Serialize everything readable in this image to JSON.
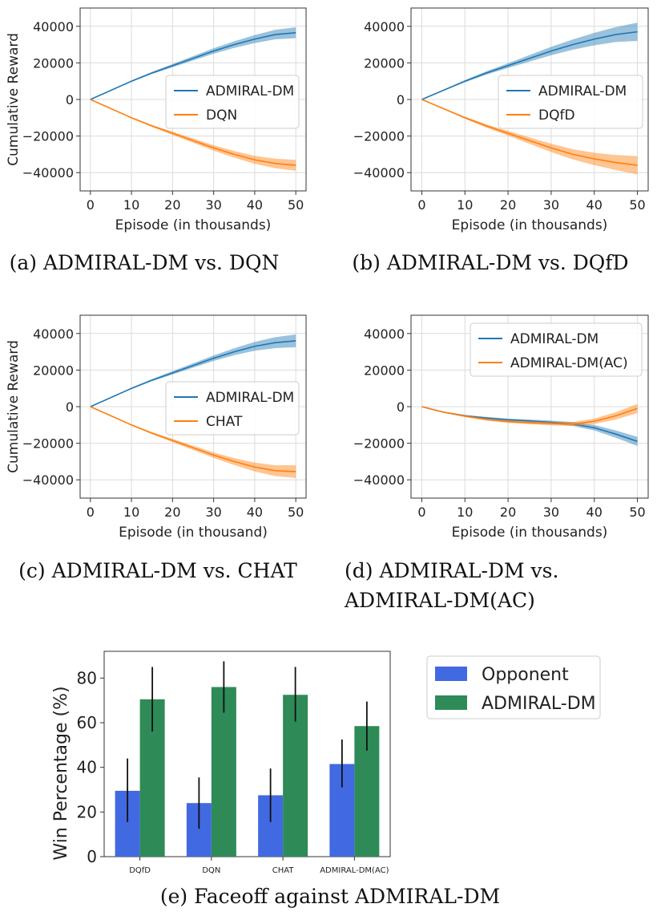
{
  "chart_data": [
    {
      "id": "a",
      "type": "line",
      "caption": "(a) ADMIRAL-DM vs. DQN",
      "xlabel": "Episode (in thousands)",
      "ylabel": "Cumulative Reward",
      "xlim": [
        -2.5,
        52.5
      ],
      "ylim": [
        -50000,
        50000
      ],
      "xticks": [
        0,
        10,
        20,
        30,
        40,
        50
      ],
      "yticks": [
        40000,
        20000,
        0,
        -20000,
        -40000
      ],
      "ytick_labels": [
        "40000",
        "20000",
        "0",
        "−20000",
        "−40000"
      ],
      "legend_position": "center-right",
      "grid": true,
      "series": [
        {
          "name": "ADMIRAL-DM",
          "color": "#1f77b4",
          "x": [
            0,
            5,
            10,
            15,
            20,
            25,
            30,
            35,
            40,
            45,
            50
          ],
          "y": [
            0,
            5000,
            10000,
            14500,
            18500,
            22500,
            26500,
            30000,
            33000,
            35500,
            36500
          ],
          "band": [
            0,
            200,
            400,
            600,
            900,
            1200,
            1500,
            1800,
            2200,
            2600,
            3000
          ]
        },
        {
          "name": "DQN",
          "color": "#ff7f0e",
          "x": [
            0,
            5,
            10,
            15,
            20,
            25,
            30,
            35,
            40,
            45,
            50
          ],
          "y": [
            0,
            -5000,
            -10000,
            -14500,
            -18500,
            -22500,
            -26500,
            -30000,
            -33000,
            -35000,
            -36000
          ],
          "band": [
            0,
            200,
            400,
            600,
            900,
            1200,
            1500,
            1800,
            2200,
            2600,
            3000
          ]
        }
      ]
    },
    {
      "id": "b",
      "type": "line",
      "caption": "(b) ADMIRAL-DM vs. DQfD",
      "xlabel": "Episode (in thousands)",
      "ylabel": "",
      "xlim": [
        -2.5,
        52.5
      ],
      "ylim": [
        -50000,
        50000
      ],
      "xticks": [
        0,
        10,
        20,
        30,
        40,
        50
      ],
      "yticks": [
        40000,
        20000,
        0,
        -20000,
        -40000
      ],
      "ytick_labels": [
        "40000",
        "20000",
        "0",
        "−20000",
        "−40000"
      ],
      "legend_position": "center-right",
      "grid": true,
      "series": [
        {
          "name": "ADMIRAL-DM",
          "color": "#1f77b4",
          "x": [
            0,
            5,
            10,
            15,
            20,
            25,
            30,
            35,
            40,
            45,
            50
          ],
          "y": [
            0,
            5000,
            10000,
            14500,
            18500,
            22500,
            26500,
            30000,
            33000,
            35500,
            37000
          ],
          "band": [
            0,
            300,
            600,
            900,
            1300,
            1800,
            2300,
            2800,
            3400,
            4100,
            5000
          ]
        },
        {
          "name": "DQfD",
          "color": "#ff7f0e",
          "x": [
            0,
            5,
            10,
            15,
            20,
            25,
            30,
            35,
            40,
            45,
            50
          ],
          "y": [
            0,
            -5000,
            -10000,
            -14500,
            -18500,
            -22500,
            -26500,
            -30000,
            -32500,
            -34500,
            -36000
          ],
          "band": [
            0,
            300,
            600,
            900,
            1300,
            1800,
            2300,
            2800,
            3400,
            4100,
            5000
          ]
        }
      ]
    },
    {
      "id": "c",
      "type": "line",
      "caption": "(c) ADMIRAL-DM vs. CHAT",
      "xlabel": "Episode (in thousand)",
      "ylabel": "Cumulative Reward",
      "xlim": [
        -2.5,
        52.5
      ],
      "ylim": [
        -50000,
        50000
      ],
      "xticks": [
        0,
        10,
        20,
        30,
        40,
        50
      ],
      "yticks": [
        40000,
        20000,
        0,
        -20000,
        -40000
      ],
      "ytick_labels": [
        "40000",
        "20000",
        "0",
        "−20000",
        "−40000"
      ],
      "legend_position": "center-right",
      "grid": true,
      "series": [
        {
          "name": "ADMIRAL-DM",
          "color": "#1f77b4",
          "x": [
            0,
            5,
            10,
            15,
            20,
            25,
            30,
            35,
            40,
            45,
            50
          ],
          "y": [
            0,
            5000,
            10000,
            14500,
            18500,
            22500,
            26500,
            30000,
            33000,
            35000,
            36000
          ],
          "band": [
            0,
            200,
            400,
            600,
            900,
            1200,
            1500,
            1900,
            2400,
            3000,
            3500
          ]
        },
        {
          "name": "CHAT",
          "color": "#ff7f0e",
          "x": [
            0,
            5,
            10,
            15,
            20,
            25,
            30,
            35,
            40,
            45,
            50
          ],
          "y": [
            0,
            -5000,
            -10000,
            -14500,
            -18500,
            -22500,
            -26500,
            -30000,
            -33000,
            -35000,
            -35500
          ],
          "band": [
            0,
            200,
            400,
            600,
            900,
            1200,
            1500,
            1900,
            2400,
            3000,
            3500
          ]
        }
      ]
    },
    {
      "id": "d",
      "type": "line",
      "caption": "(d)        ADMIRAL-DM        vs.",
      "caption2": "ADMIRAL-DM(AC)",
      "xlabel": "Episode (in thousands)",
      "ylabel": "",
      "xlim": [
        -2.5,
        52.5
      ],
      "ylim": [
        -50000,
        50000
      ],
      "xticks": [
        0,
        10,
        20,
        30,
        40,
        50
      ],
      "yticks": [
        40000,
        20000,
        0,
        -20000,
        -40000
      ],
      "ytick_labels": [
        "40000",
        "20000",
        "0",
        "−20000",
        "−40000"
      ],
      "legend_position": "upper-right",
      "grid": true,
      "series": [
        {
          "name": "ADMIRAL-DM",
          "color": "#1f77b4",
          "x": [
            0,
            5,
            10,
            15,
            20,
            25,
            30,
            35,
            40,
            45,
            50
          ],
          "y": [
            0,
            -3000,
            -5000,
            -6200,
            -7200,
            -7800,
            -8500,
            -9500,
            -11500,
            -15000,
            -19000
          ],
          "band": [
            0,
            300,
            500,
            600,
            700,
            800,
            900,
            1100,
            1500,
            2000,
            2500
          ]
        },
        {
          "name": "ADMIRAL-DM(AC)",
          "color": "#ff7f0e",
          "x": [
            0,
            5,
            10,
            15,
            20,
            25,
            30,
            35,
            40,
            45,
            50
          ],
          "y": [
            0,
            -3000,
            -5200,
            -7000,
            -8200,
            -8800,
            -9300,
            -9500,
            -8000,
            -5000,
            -1000
          ],
          "band": [
            0,
            300,
            500,
            600,
            700,
            800,
            900,
            1100,
            1500,
            2000,
            2500
          ]
        }
      ]
    },
    {
      "id": "e",
      "type": "bar",
      "caption": "(e) Faceoff against ADMIRAL-DM",
      "ylabel": "Win Percentage (%)",
      "ylim": [
        0,
        92
      ],
      "yticks": [
        0,
        20,
        40,
        60,
        80
      ],
      "legend_position": "outside-right",
      "categories": [
        "DQfD",
        "DQN",
        "CHAT",
        "ADMIRAL-DM(AC)"
      ],
      "series": [
        {
          "name": "Opponent",
          "color": "#4169e1",
          "values": [
            29.5,
            24,
            27.5,
            41.5
          ],
          "err_low": [
            15.5,
            12.5,
            15.5,
            31
          ],
          "err_high": [
            44,
            35.5,
            39.5,
            52.5
          ]
        },
        {
          "name": "ADMIRAL-DM",
          "color": "#2e8b57",
          "values": [
            70.5,
            76,
            72.5,
            58.5
          ],
          "err_low": [
            56,
            64.5,
            60.5,
            47.5
          ],
          "err_high": [
            85,
            87.5,
            85,
            69.5
          ]
        }
      ]
    }
  ]
}
